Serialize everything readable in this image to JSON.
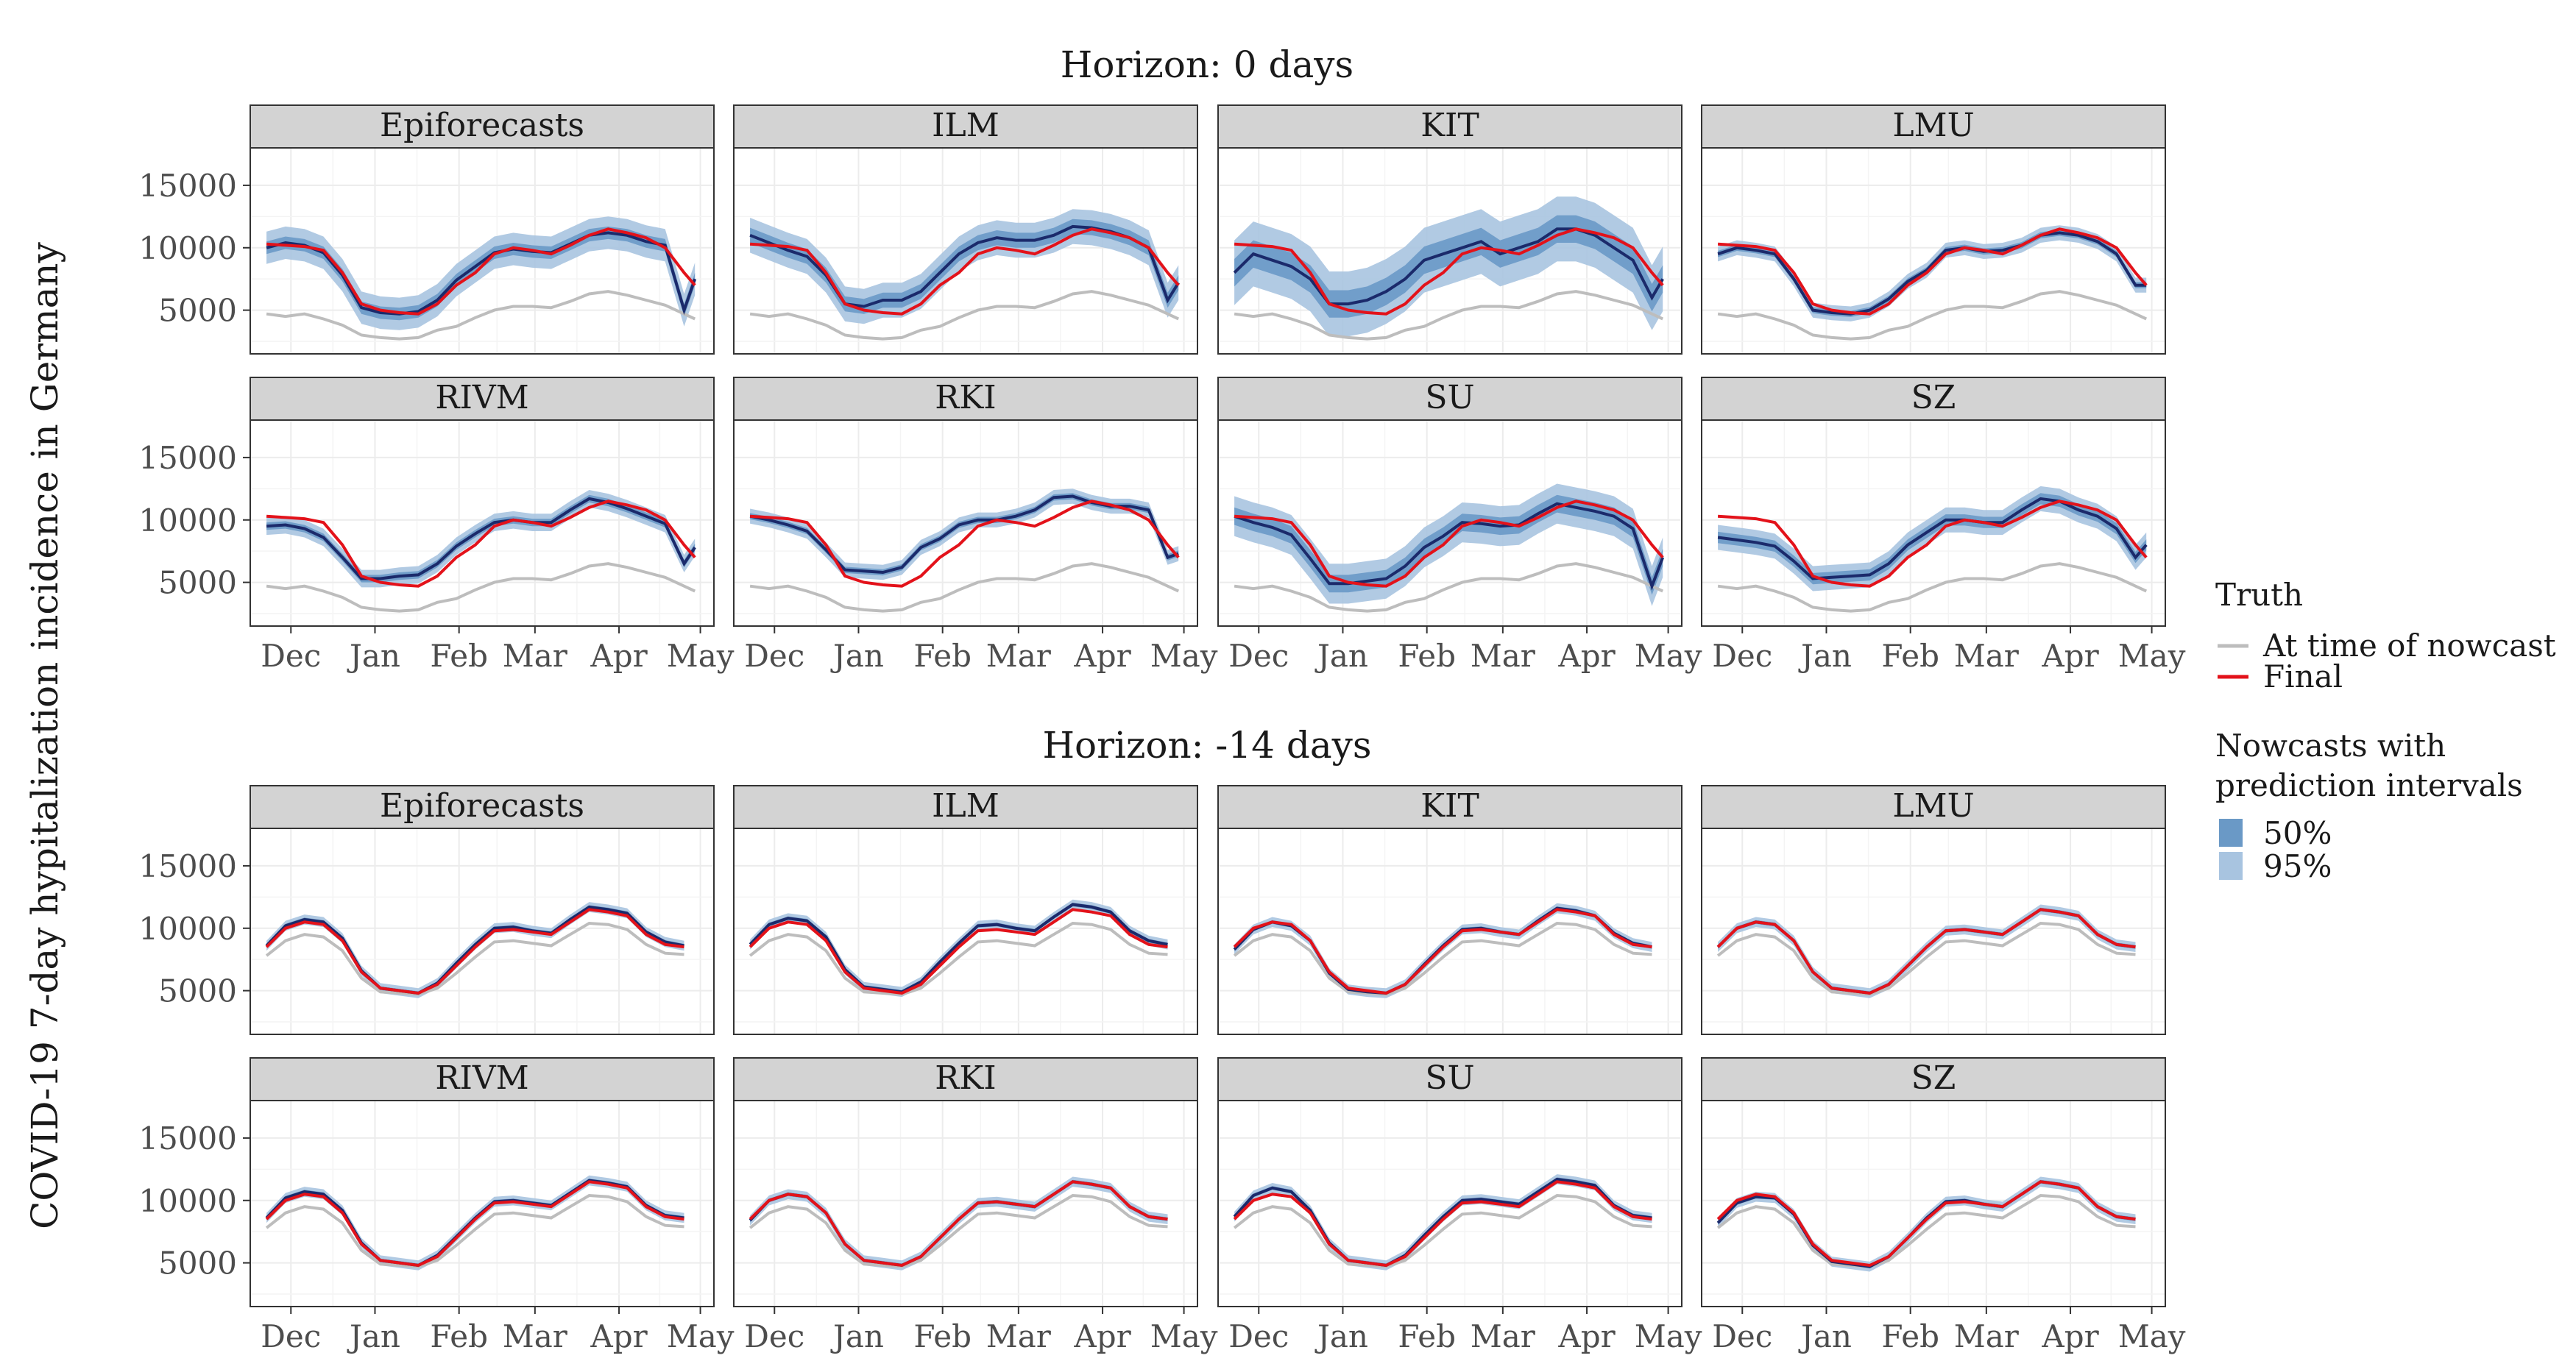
{
  "figure": {
    "ylabel": "COVID-19 7-day hypitalization incidence in Germany",
    "x_tick_labels": [
      "Dec",
      "Jan",
      "Feb",
      "Mar",
      "Apr",
      "May"
    ],
    "y_tick_labels": [
      "5000",
      "10000",
      "15000"
    ],
    "colors": {
      "at_time_of_nowcast": "#bdbdbd",
      "final": "#e3121a",
      "nowcast_median": "#1b2a6b",
      "interval_50": "#6a99c6",
      "interval_95": "#a8c4e0",
      "strip_fill": "#d3d3d3",
      "grid": "#ececec"
    }
  },
  "legend": {
    "truth_title": "Truth",
    "truth_items": [
      "At time of nowcast",
      "Final"
    ],
    "nowcast_title_line1": "Nowcasts with",
    "nowcast_title_line2": "prediction intervals",
    "interval_items": [
      "50%",
      "95%"
    ]
  },
  "chart_data": {
    "type": "line",
    "facet_rows": [
      "Horizon: 0 days",
      "Horizon: -14 days"
    ],
    "models": [
      "Epiforecasts",
      "ILM",
      "KIT",
      "LMU",
      "RIVM",
      "RKI",
      "SU",
      "SZ"
    ],
    "x_axis": {
      "ticks": [
        "2021-12-01",
        "2022-01-01",
        "2022-02-01",
        "2022-03-01",
        "2022-04-01",
        "2022-05-01"
      ],
      "tick_labels": [
        "Dec",
        "Jan",
        "Feb",
        "Mar",
        "Apr",
        "May"
      ],
      "range": [
        "2021-11-16",
        "2022-05-06"
      ]
    },
    "y_axis": {
      "ticks": [
        5000,
        10000,
        15000
      ],
      "range": [
        1500,
        18000
      ]
    },
    "grid": true,
    "legend_position": "right",
    "x_dates": [
      "2021-11-22",
      "2021-11-29",
      "2021-12-06",
      "2021-12-13",
      "2021-12-20",
      "2021-12-27",
      "2022-01-03",
      "2022-01-10",
      "2022-01-17",
      "2022-01-24",
      "2022-01-31",
      "2022-02-07",
      "2022-02-14",
      "2022-02-21",
      "2022-02-28",
      "2022-03-07",
      "2022-03-14",
      "2022-03-21",
      "2022-03-28",
      "2022-04-04",
      "2022-04-11",
      "2022-04-18",
      "2022-04-25",
      "2022-04-29"
    ],
    "truth": {
      "at_time_of_nowcast": [
        4700,
        4500,
        4700,
        4300,
        3800,
        3000,
        2800,
        2700,
        2800,
        3400,
        3700,
        4400,
        5000,
        5300,
        5300,
        5200,
        5700,
        6300,
        6500,
        6200,
        5800,
        5400,
        4700,
        4300
      ],
      "final": [
        10300,
        10200,
        10100,
        9800,
        8000,
        5500,
        5000,
        4800,
        4700,
        5500,
        7000,
        8000,
        9500,
        10000,
        9800,
        9500,
        10200,
        11000,
        11500,
        11200,
        10800,
        10000,
        8000,
        7000
      ]
    },
    "final_horizon_minus14": [
      8500,
      10000,
      10500,
      10300,
      9000,
      6500,
      5200,
      5000,
      4800,
      5500,
      7000,
      8500,
      9800,
      9900,
      9700,
      9500,
      10500,
      11500,
      11300,
      11000,
      9500,
      8700,
      8500
    ],
    "at_time_of_nowcast_horizon_minus14": [
      7800,
      9000,
      9500,
      9300,
      8200,
      6000,
      4900,
      4800,
      4700,
      5200,
      6400,
      7700,
      8900,
      9000,
      8800,
      8600,
      9500,
      10400,
      10300,
      9900,
      8700,
      8000,
      7900
    ],
    "nowcast_median_horizon_0": {
      "Epiforecasts": [
        10000,
        10400,
        10200,
        9600,
        7800,
        5200,
        4800,
        4700,
        4900,
        5800,
        7400,
        8500,
        9600,
        9900,
        9700,
        9600,
        10300,
        11000,
        11200,
        11000,
        10500,
        10200,
        5000,
        7500
      ],
      "ILM": [
        11000,
        10400,
        9800,
        9300,
        7800,
        5500,
        5300,
        5800,
        5800,
        6500,
        8000,
        9500,
        10400,
        10800,
        10600,
        10600,
        11000,
        11700,
        11600,
        11300,
        10800,
        10000,
        5800,
        7200
      ],
      "KIT": [
        8000,
        9500,
        9000,
        8500,
        7500,
        5500,
        5500,
        5800,
        6500,
        7500,
        9000,
        9500,
        10000,
        10500,
        9500,
        10000,
        10500,
        11500,
        11500,
        11000,
        10000,
        9000,
        6000,
        7500
      ],
      "LMU": [
        9500,
        10000,
        9800,
        9500,
        7500,
        5000,
        4800,
        4700,
        5000,
        5900,
        7300,
        8200,
        9800,
        10000,
        9700,
        9800,
        10200,
        11000,
        11200,
        11000,
        10500,
        9500,
        7000,
        7000
      ],
      "RIVM": [
        9500,
        9600,
        9300,
        8600,
        7000,
        5300,
        5300,
        5500,
        5600,
        6500,
        7900,
        8900,
        9800,
        10000,
        9800,
        9800,
        10800,
        11700,
        11400,
        10900,
        10300,
        9700,
        6500,
        7800
      ],
      "RKI": [
        10300,
        10000,
        9600,
        9100,
        7600,
        6000,
        5900,
        5800,
        6200,
        7800,
        8500,
        9600,
        10000,
        10000,
        10300,
        10800,
        11800,
        11900,
        11400,
        11100,
        11100,
        10800,
        7000,
        7300
      ],
      "SU": [
        10300,
        9800,
        9400,
        8800,
        6900,
        4900,
        4900,
        5100,
        5300,
        6300,
        7800,
        8700,
        9800,
        9700,
        9500,
        9600,
        10500,
        11300,
        11000,
        10700,
        10300,
        9300,
        4700,
        7000
      ],
      "SZ": [
        8600,
        8400,
        8200,
        7900,
        6700,
        5300,
        5400,
        5500,
        5600,
        6500,
        8000,
        9000,
        10000,
        10000,
        9800,
        9800,
        10800,
        11700,
        11500,
        10800,
        10300,
        9300,
        7000,
        8000
      ]
    },
    "interval_half_width_horizon_0": {
      "Epiforecasts": {
        "p50": 500,
        "p95": 1300
      },
      "ILM": {
        "p50": 600,
        "p95": 1400
      },
      "KIT": {
        "p50": 1100,
        "p95": 2600
      },
      "LMU": {
        "p50": 250,
        "p95": 600
      },
      "RIVM": {
        "p50": 300,
        "p95": 700
      },
      "RKI": {
        "p50": 250,
        "p95": 600
      },
      "SU": {
        "p50": 700,
        "p95": 1600
      },
      "SZ": {
        "p50": 450,
        "p95": 1000
      }
    },
    "nowcast_median_horizon_minus14": {
      "Epiforecasts": [
        8600,
        10200,
        10700,
        10500,
        9200,
        6600,
        5200,
        5000,
        4800,
        5600,
        7200,
        8700,
        10000,
        10100,
        9800,
        9600,
        10700,
        11700,
        11500,
        11200,
        9700,
        8900,
        8600
      ],
      "ILM": [
        8700,
        10300,
        10800,
        10600,
        9300,
        6700,
        5300,
        5100,
        4900,
        5700,
        7300,
        8800,
        10200,
        10300,
        10000,
        9800,
        10900,
        11900,
        11700,
        11300,
        9800,
        9000,
        8700
      ],
      "KIT": [
        8300,
        9900,
        10500,
        10200,
        9000,
        6400,
        5100,
        4900,
        4800,
        5500,
        7100,
        8600,
        9900,
        10000,
        9700,
        9500,
        10600,
        11600,
        11400,
        11000,
        9600,
        8800,
        8500
      ],
      "LMU": [
        8500,
        10000,
        10500,
        10300,
        9000,
        6500,
        5200,
        5000,
        4800,
        5500,
        7000,
        8500,
        9800,
        9900,
        9700,
        9500,
        10500,
        11500,
        11300,
        11000,
        9500,
        8700,
        8500
      ],
      "RIVM": [
        8600,
        10200,
        10700,
        10500,
        9200,
        6600,
        5200,
        5000,
        4800,
        5600,
        7100,
        8600,
        9900,
        10000,
        9800,
        9600,
        10600,
        11600,
        11400,
        11100,
        9600,
        8800,
        8600
      ],
      "RKI": [
        8400,
        10000,
        10500,
        10300,
        9000,
        6500,
        5200,
        5000,
        4800,
        5500,
        7000,
        8500,
        9800,
        9900,
        9700,
        9500,
        10500,
        11500,
        11300,
        11000,
        9500,
        8700,
        8500
      ],
      "SU": [
        8700,
        10400,
        11000,
        10700,
        9200,
        6600,
        5200,
        5000,
        4800,
        5600,
        7200,
        8700,
        10000,
        10100,
        9900,
        9700,
        10700,
        11700,
        11500,
        11200,
        9600,
        8800,
        8600
      ],
      "SZ": [
        8200,
        9800,
        10300,
        10200,
        8900,
        6400,
        5100,
        4900,
        4700,
        5500,
        7000,
        8600,
        9900,
        10000,
        9700,
        9500,
        10500,
        11500,
        11300,
        11000,
        9500,
        8700,
        8500
      ]
    },
    "interval_half_width_horizon_minus14": {
      "p50": 150,
      "p95": 400
    }
  }
}
